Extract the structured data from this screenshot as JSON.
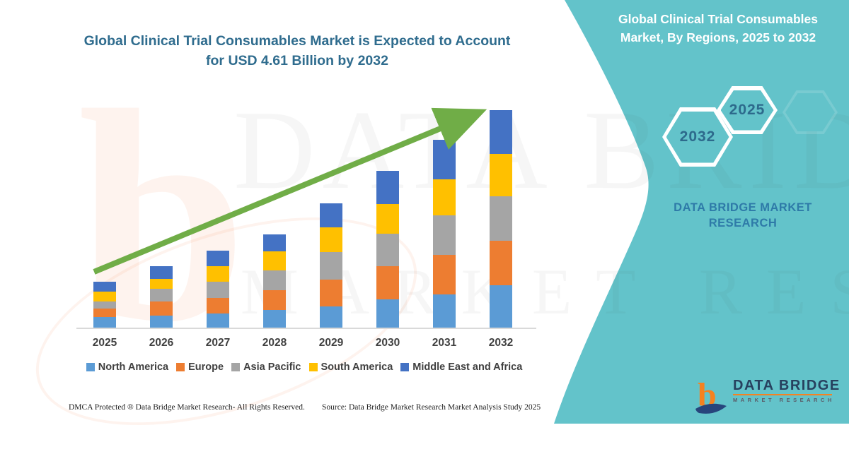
{
  "left_panel": {
    "title_line1": "Global Clinical Trial Consumables Market is Expected to Account",
    "title_line2": "for USD 4.61 Billion by 2032",
    "footer_dmca": "DMCA Protected ® Data Bridge Market Research-  All Rights Reserved.",
    "footer_source": "Source: Data Bridge Market Research  Market Analysis Study 2025"
  },
  "right_panel": {
    "title_line1": "Global Clinical Trial Consumables",
    "title_line2": "Market, By Regions, 2025 to 2032",
    "hexagon_back_label": "2032",
    "hexagon_front_label": "2025",
    "brand_line1": "DATA BRIDGE MARKET",
    "brand_line2": "RESEARCH",
    "background_color": "#63c3ca"
  },
  "logo": {
    "glyph": "b",
    "name": "DATA BRIDGE",
    "subtitle": "MARKET RESEARCH",
    "glyph_color": "#f58220",
    "swoosh_color": "#27457c"
  },
  "watermark": {
    "line1": "DATA BRIDGE",
    "line2": "MARKET RESEARCH",
    "glyph": "b"
  },
  "chart_data": {
    "type": "bar",
    "stacked": true,
    "title": "Global Clinical Trial Consumables Market is Expected to Account for USD 4.61 Billion by 2032",
    "unit": "USD Billion (values estimated from bar heights)",
    "categories": [
      "2025",
      "2026",
      "2027",
      "2028",
      "2029",
      "2030",
      "2031",
      "2032"
    ],
    "series": [
      {
        "name": "North America",
        "color": "#5B9BD5",
        "values": [
          0.22,
          0.25,
          0.3,
          0.37,
          0.45,
          0.6,
          0.7,
          0.9
        ]
      },
      {
        "name": "Europe",
        "color": "#ED7D31",
        "values": [
          0.19,
          0.3,
          0.33,
          0.42,
          0.57,
          0.7,
          0.84,
          0.94
        ]
      },
      {
        "name": "Asia Pacific",
        "color": "#A5A5A5",
        "values": [
          0.15,
          0.27,
          0.34,
          0.42,
          0.58,
          0.69,
          0.84,
          0.94
        ]
      },
      {
        "name": "South America",
        "color": "#FFC000",
        "values": [
          0.21,
          0.22,
          0.34,
          0.4,
          0.52,
          0.63,
          0.76,
          0.9
        ]
      },
      {
        "name": "Middle East and Africa",
        "color": "#4472C4",
        "values": [
          0.21,
          0.27,
          0.33,
          0.37,
          0.52,
          0.7,
          0.84,
          0.93
        ]
      }
    ],
    "totals": [
      0.98,
      1.31,
      1.64,
      1.98,
      2.64,
      3.32,
      3.98,
      4.61
    ],
    "annotation": "USD 4.61 Billion by 2032",
    "ylim": [
      0,
      5
    ],
    "grid": false,
    "legend_position": "bottom",
    "trend_arrow": {
      "present": true,
      "color": "#70ad47"
    }
  },
  "colors": {
    "left_title_text": "#2f6c8e",
    "axis_line": "#d9d9d9",
    "axis_label_text": "#404040",
    "teal_background": "#63c3ca",
    "hexagon_number_text": "#2d6a8c",
    "brand_text": "#2e7aa8",
    "arrow_green": "#70ad47"
  }
}
